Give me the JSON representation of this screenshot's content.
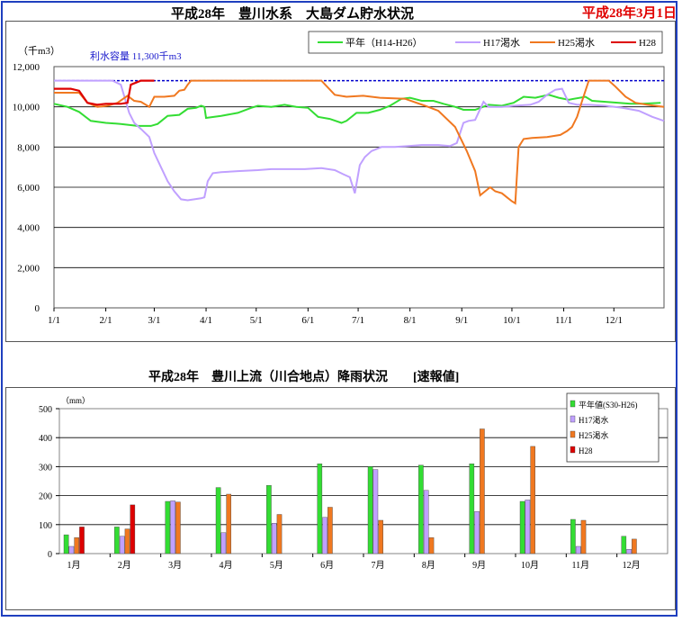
{
  "header": {
    "top_title": "平成28年　豊川水系　大島ダム貯水状況",
    "date": "平成28年3月1日",
    "bottom_title": "平成28年　豊川上流（川合地点）降雨状況　　[速報値]"
  },
  "colors": {
    "frame": "#1f3fbf",
    "heinen": "#33dd33",
    "h17": "#c0a0ff",
    "h25": "#f07820",
    "h28": "#dd0000",
    "capacity": "#0000cc"
  },
  "chart_data": [
    {
      "type": "line",
      "ylabel": "（千m3）",
      "ylim": [
        0,
        12000
      ],
      "yticks": [
        "0",
        "2,000",
        "4,000",
        "6,000",
        "8,000",
        "10,000",
        "12,000"
      ],
      "xticks": [
        "1/1",
        "2/1",
        "3/1",
        "4/1",
        "5/1",
        "6/1",
        "7/1",
        "8/1",
        "9/1",
        "10/1",
        "11/1",
        "12/1"
      ],
      "xlim_days": [
        0,
        365
      ],
      "capacity": {
        "label": "利水容量 11,300千m3",
        "value": 11300
      },
      "legend": {
        "position": "top-right",
        "entries": [
          "平年（H14-H26）",
          "H17渇水",
          "H25渇水",
          "H28"
        ]
      },
      "series": [
        {
          "name": "平年（H14-H26）",
          "color_key": "heinen",
          "points": [
            [
              0,
              10150
            ],
            [
              8,
              10000
            ],
            [
              15,
              9750
            ],
            [
              22,
              9300
            ],
            [
              31,
              9200
            ],
            [
              40,
              9150
            ],
            [
              50,
              9050
            ],
            [
              58,
              9050
            ],
            [
              62,
              9150
            ],
            [
              68,
              9550
            ],
            [
              75,
              9600
            ],
            [
              80,
              9900
            ],
            [
              85,
              9950
            ],
            [
              88,
              10050
            ],
            [
              90,
              10000
            ],
            [
              91,
              9450
            ],
            [
              100,
              9550
            ],
            [
              110,
              9700
            ],
            [
              118,
              9950
            ],
            [
              122,
              10050
            ],
            [
              130,
              10000
            ],
            [
              138,
              10100
            ],
            [
              145,
              10000
            ],
            [
              152,
              9950
            ],
            [
              158,
              9500
            ],
            [
              165,
              9400
            ],
            [
              172,
              9200
            ],
            [
              175,
              9300
            ],
            [
              181,
              9700
            ],
            [
              188,
              9700
            ],
            [
              195,
              9850
            ],
            [
              201,
              10050
            ],
            [
              208,
              10400
            ],
            [
              213,
              10450
            ],
            [
              220,
              10300
            ],
            [
              227,
              10300
            ],
            [
              233,
              10150
            ],
            [
              240,
              10000
            ],
            [
              245,
              9850
            ],
            [
              252,
              9850
            ],
            [
              260,
              10100
            ],
            [
              268,
              10050
            ],
            [
              275,
              10200
            ],
            [
              281,
              10500
            ],
            [
              288,
              10450
            ],
            [
              296,
              10600
            ],
            [
              302,
              10450
            ],
            [
              308,
              10350
            ],
            [
              318,
              10500
            ],
            [
              322,
              10300
            ],
            [
              330,
              10250
            ],
            [
              338,
              10200
            ],
            [
              345,
              10150
            ],
            [
              352,
              10150
            ],
            [
              363,
              10200
            ]
          ]
        },
        {
          "name": "H17渇水",
          "color_key": "h17",
          "points": [
            [
              0,
              11300
            ],
            [
              35,
              11300
            ],
            [
              40,
              11100
            ],
            [
              45,
              9700
            ],
            [
              48,
              9200
            ],
            [
              52,
              8900
            ],
            [
              57,
              8500
            ],
            [
              60,
              7700
            ],
            [
              64,
              7000
            ],
            [
              68,
              6300
            ],
            [
              72,
              5800
            ],
            [
              76,
              5400
            ],
            [
              80,
              5350
            ],
            [
              84,
              5400
            ],
            [
              88,
              5450
            ],
            [
              90,
              5500
            ],
            [
              92,
              6300
            ],
            [
              95,
              6700
            ],
            [
              100,
              6750
            ],
            [
              110,
              6800
            ],
            [
              122,
              6850
            ],
            [
              130,
              6900
            ],
            [
              140,
              6900
            ],
            [
              150,
              6900
            ],
            [
              160,
              6950
            ],
            [
              168,
              6850
            ],
            [
              173,
              6650
            ],
            [
              177,
              6500
            ],
            [
              180,
              5700
            ],
            [
              183,
              7100
            ],
            [
              186,
              7500
            ],
            [
              190,
              7800
            ],
            [
              196,
              8000
            ],
            [
              204,
              8000
            ],
            [
              212,
              8050
            ],
            [
              220,
              8100
            ],
            [
              230,
              8100
            ],
            [
              237,
              8050
            ],
            [
              241,
              8200
            ],
            [
              245,
              9200
            ],
            [
              248,
              9300
            ],
            [
              252,
              9350
            ],
            [
              257,
              10250
            ],
            [
              260,
              10000
            ],
            [
              268,
              10000
            ],
            [
              275,
              10050
            ],
            [
              285,
              10100
            ],
            [
              290,
              10250
            ],
            [
              295,
              10600
            ],
            [
              300,
              10850
            ],
            [
              304,
              10900
            ],
            [
              308,
              10200
            ],
            [
              313,
              10100
            ],
            [
              320,
              10100
            ],
            [
              330,
              10050
            ],
            [
              340,
              9950
            ],
            [
              350,
              9800
            ],
            [
              358,
              9500
            ],
            [
              365,
              9300
            ]
          ]
        },
        {
          "name": "H25渇水",
          "color_key": "h25",
          "points": [
            [
              0,
              10700
            ],
            [
              15,
              10700
            ],
            [
              20,
              10200
            ],
            [
              26,
              10000
            ],
            [
              32,
              10050
            ],
            [
              38,
              10200
            ],
            [
              44,
              10550
            ],
            [
              48,
              10300
            ],
            [
              52,
              10250
            ],
            [
              57,
              10000
            ],
            [
              60,
              10500
            ],
            [
              66,
              10500
            ],
            [
              72,
              10550
            ],
            [
              75,
              10800
            ],
            [
              78,
              10850
            ],
            [
              80,
              11100
            ],
            [
              82,
              11300
            ],
            [
              150,
              11300
            ],
            [
              160,
              11300
            ],
            [
              168,
              10600
            ],
            [
              175,
              10500
            ],
            [
              185,
              10550
            ],
            [
              195,
              10450
            ],
            [
              210,
              10400
            ],
            [
              222,
              10050
            ],
            [
              230,
              9800
            ],
            [
              240,
              9000
            ],
            [
              247,
              7800
            ],
            [
              252,
              6800
            ],
            [
              255,
              5600
            ],
            [
              258,
              5800
            ],
            [
              261,
              6000
            ],
            [
              264,
              5800
            ],
            [
              268,
              5700
            ],
            [
              271,
              5500
            ],
            [
              274,
              5300
            ],
            [
              276,
              5200
            ],
            [
              278,
              8000
            ],
            [
              281,
              8400
            ],
            [
              286,
              8450
            ],
            [
              295,
              8500
            ],
            [
              303,
              8600
            ],
            [
              307,
              8800
            ],
            [
              310,
              9000
            ],
            [
              313,
              9500
            ],
            [
              316,
              10300
            ],
            [
              320,
              11300
            ],
            [
              332,
              11300
            ],
            [
              336,
              11000
            ],
            [
              342,
              10500
            ],
            [
              348,
              10200
            ],
            [
              355,
              10100
            ],
            [
              365,
              10000
            ]
          ]
        },
        {
          "name": "H28",
          "color_key": "h28",
          "points": [
            [
              0,
              10900
            ],
            [
              10,
              10900
            ],
            [
              15,
              10800
            ],
            [
              20,
              10200
            ],
            [
              26,
              10100
            ],
            [
              31,
              10150
            ],
            [
              40,
              10150
            ],
            [
              44,
              10200
            ],
            [
              46,
              11100
            ],
            [
              52,
              11300
            ],
            [
              60,
              11300
            ]
          ]
        }
      ]
    },
    {
      "type": "bar",
      "ylabel": "（mm）",
      "ylim": [
        0,
        500
      ],
      "yticks": [
        "0",
        "100",
        "200",
        "300",
        "400",
        "500"
      ],
      "categories": [
        "1月",
        "2月",
        "3月",
        "4月",
        "5月",
        "6月",
        "7月",
        "8月",
        "9月",
        "10月",
        "11月",
        "12月"
      ],
      "legend": {
        "position": "top-right",
        "entries": [
          "平年値(S30-H26)",
          "H17渇水",
          "H25渇水",
          "H28"
        ]
      },
      "series": [
        {
          "name": "平年値(S30-H26)",
          "color_key": "heinen",
          "values": [
            65,
            92,
            180,
            228,
            235,
            310,
            300,
            305,
            310,
            180,
            118,
            60
          ]
        },
        {
          "name": "H17渇水",
          "color_key": "h17",
          "values": [
            25,
            60,
            182,
            72,
            105,
            125,
            290,
            218,
            145,
            185,
            25,
            15
          ]
        },
        {
          "name": "H25渇水",
          "color_key": "h25",
          "values": [
            55,
            85,
            178,
            205,
            135,
            160,
            115,
            55,
            430,
            370,
            115,
            50
          ]
        },
        {
          "name": "H28",
          "color_key": "h28",
          "values": [
            92,
            168,
            null,
            null,
            null,
            null,
            null,
            null,
            null,
            null,
            null,
            null
          ]
        }
      ]
    }
  ]
}
